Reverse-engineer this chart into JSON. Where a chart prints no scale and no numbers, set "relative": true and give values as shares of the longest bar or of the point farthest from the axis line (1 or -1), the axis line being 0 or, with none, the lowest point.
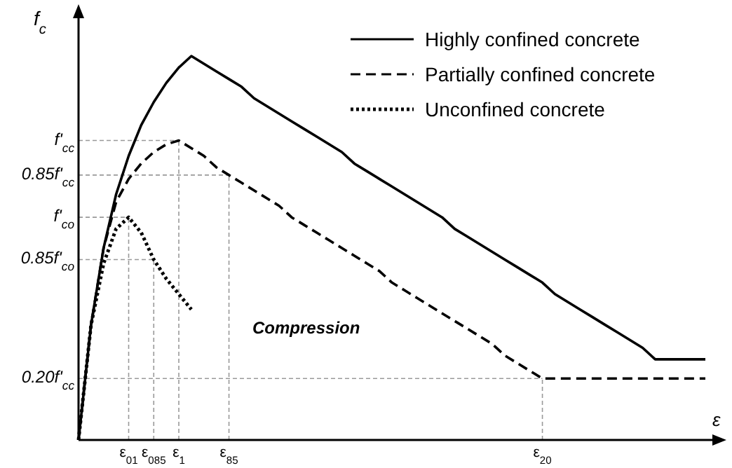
{
  "chart_data": {
    "type": "line",
    "relative": true,
    "legend": "top right",
    "xlabel": "ε",
    "ylabel": "f$_{c}$",
    "categories": [
      null,
      null,
      null,
      null,
      "ε$_{01}$",
      null,
      "ε$_{085}$",
      null,
      "ε$_{1}$",
      null,
      null,
      null,
      "ε$_{85}$",
      null,
      null,
      null,
      null,
      null,
      null,
      null,
      null,
      null,
      null,
      null,
      null,
      null,
      null,
      null,
      null,
      null,
      null,
      null,
      null,
      null,
      null,
      null,
      null,
      "ε$_{20}$",
      null,
      null,
      null,
      null,
      null,
      null,
      null,
      null,
      null,
      null,
      null,
      null,
      null
    ],
    "series": [
      {
        "name": "Highly confined concrete",
        "color": "#000000",
        "line_style": "solid",
        "values": [
          0,
          0.3,
          0.5,
          0.64,
          0.74,
          0.82,
          0.88,
          0.93,
          0.97,
          1.0,
          0.98,
          0.96,
          0.94,
          0.92,
          0.89,
          0.87,
          0.85,
          0.83,
          0.81,
          0.79,
          0.77,
          0.75,
          0.72,
          0.7,
          0.68,
          0.66,
          0.64,
          0.62,
          0.6,
          0.58,
          0.55,
          0.53,
          0.51,
          0.49,
          0.47,
          0.45,
          0.43,
          0.41,
          0.38,
          0.36,
          0.34,
          0.32,
          0.3,
          0.28,
          0.26,
          0.24,
          0.21,
          0.21,
          0.21,
          0.21,
          0.21
        ]
      },
      {
        "name": "Partially confined concrete",
        "color": "#000000",
        "line_style": "dashed",
        "values": [
          0,
          0.3,
          0.5,
          0.62,
          0.68,
          0.72,
          0.75,
          0.77,
          0.78,
          0.76,
          0.74,
          0.71,
          0.69,
          0.67,
          0.65,
          0.63,
          0.61,
          0.58,
          0.56,
          0.54,
          0.52,
          0.5,
          0.48,
          0.46,
          0.44,
          0.41,
          0.39,
          0.37,
          0.35,
          0.33,
          0.31,
          0.29,
          0.27,
          0.25,
          0.22,
          0.2,
          0.18,
          0.16,
          0.16,
          0.16,
          0.16,
          0.16,
          0.16,
          0.16,
          0.16,
          0.16,
          0.16,
          0.16,
          0.16,
          0.16,
          0.16
        ]
      },
      {
        "name": "Unconfined concrete",
        "color": "#000000",
        "line_style": "dotted",
        "values": [
          0,
          0.3,
          0.46,
          0.55,
          0.58,
          0.54,
          0.47,
          0.42,
          0.38,
          0.34,
          null,
          null,
          null,
          null,
          null,
          null,
          null,
          null,
          null,
          null,
          null,
          null,
          null,
          null,
          null,
          null,
          null,
          null,
          null,
          null,
          null,
          null,
          null,
          null,
          null,
          null,
          null,
          null,
          null,
          null,
          null,
          null,
          null,
          null,
          null,
          null,
          null,
          null,
          null,
          null,
          null
        ]
      }
    ],
    "annotations": [
      "Compression"
    ],
    "ref_lines": [
      {
        "axis": "y",
        "value": 0.78,
        "label": "f'$_{cc}$",
        "color": "#999999",
        "line_style": "dashed"
      },
      {
        "axis": "y",
        "value": 0.69,
        "label": "0.85f'$_{cc}$",
        "color": "#999999",
        "line_style": "dashed"
      },
      {
        "axis": "y",
        "value": 0.58,
        "label": "f'$_{co}$",
        "color": "#999999",
        "line_style": "dashed"
      },
      {
        "axis": "y",
        "value": 0.47,
        "label": "0.85f'$_{co}$",
        "color": "#999999",
        "line_style": "dashed"
      },
      {
        "axis": "y",
        "value": 0.16,
        "label": "0.20f'$_{cc}$",
        "color": "#999999",
        "line_style": "dashed"
      }
    ]
  }
}
